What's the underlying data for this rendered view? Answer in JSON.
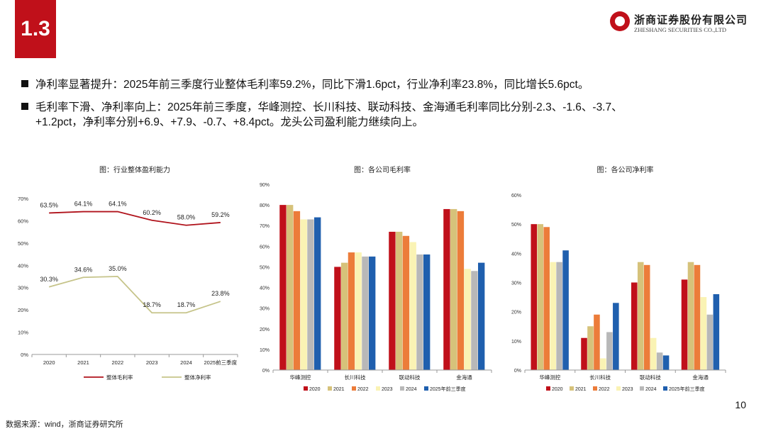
{
  "section_number": "1.3",
  "logo": {
    "name_cn": "浙商证券股份有限公司",
    "name_en": "ZHESHANG SECURITIES CO.,LTD"
  },
  "bullets": [
    "净利率显著提升：2025年前三季度行业整体毛利率59.2%，同比下滑1.6pct，行业净利率23.8%，同比增长5.6pct。",
    "毛利率下滑、净利率向上：2025年前三季度，华峰测控、长川科技、联动科技、金海通毛利率同比分别-2.3、-1.6、-3.7、",
    "+1.2pct，净利率分别+6.9、+7.9、-0.7、+8.4pct。龙头公司盈利能力继续向上。"
  ],
  "page_number": "10",
  "source": "数据来源：wind，浙商证券研究所",
  "chart_data": [
    {
      "type": "line",
      "title": "图：行业整体盈利能力",
      "categories": [
        "2020",
        "2021",
        "2022",
        "2023",
        "2024",
        "2025前三季度"
      ],
      "ylim": [
        0,
        70
      ],
      "yticks": [
        "0%",
        "10%",
        "20%",
        "30%",
        "40%",
        "50%",
        "60%",
        "70%"
      ],
      "series": [
        {
          "name": "整体毛利率",
          "color": "#b0121b",
          "values": [
            63.5,
            64.1,
            64.1,
            60.2,
            58.0,
            59.2
          ],
          "labels": [
            "63.5%",
            "64.1%",
            "64.1%",
            "60.2%",
            "58.0%",
            "59.2%"
          ]
        },
        {
          "name": "整体净利率",
          "color": "#c6c48a",
          "values": [
            30.3,
            34.6,
            35.0,
            18.7,
            18.7,
            23.8
          ],
          "labels": [
            "30.3%",
            "34.6%",
            "35.0%",
            "18.7%",
            "18.7%",
            "23.8%"
          ]
        }
      ]
    },
    {
      "type": "bar",
      "title": "图：各公司毛利率",
      "categories": [
        "华峰测控",
        "长川科技",
        "联动科技",
        "金海通"
      ],
      "ylim": [
        0,
        90
      ],
      "yticks": [
        "0%",
        "10%",
        "20%",
        "30%",
        "40%",
        "50%",
        "60%",
        "70%",
        "80%",
        "90%"
      ],
      "series": [
        {
          "name": "2020",
          "color": "#c0101a",
          "values": [
            80,
            50,
            67,
            78
          ]
        },
        {
          "name": "2021",
          "color": "#d6c27a",
          "values": [
            80,
            52,
            67,
            78
          ]
        },
        {
          "name": "2022",
          "color": "#ec7c3a",
          "values": [
            77,
            57,
            65,
            77
          ]
        },
        {
          "name": "2023",
          "color": "#faf3b4",
          "values": [
            73,
            57,
            62,
            49
          ]
        },
        {
          "name": "2024",
          "color": "#b8b8b8",
          "values": [
            73,
            55,
            56,
            48
          ]
        },
        {
          "name": "2025年前三季度",
          "color": "#1f5fae",
          "values": [
            74,
            55,
            56,
            52
          ]
        }
      ]
    },
    {
      "type": "bar",
      "title": "图：各公司净利率",
      "categories": [
        "华峰测控",
        "长川科技",
        "联动科技",
        "金海通"
      ],
      "ylim": [
        0,
        60
      ],
      "yticks": [
        "0%",
        "10%",
        "20%",
        "30%",
        "40%",
        "50%",
        "60%"
      ],
      "series": [
        {
          "name": "2020",
          "color": "#c0101a",
          "values": [
            50,
            11,
            30,
            31
          ]
        },
        {
          "name": "2021",
          "color": "#d6c27a",
          "values": [
            50,
            15,
            37,
            37
          ]
        },
        {
          "name": "2022",
          "color": "#ec7c3a",
          "values": [
            49,
            19,
            36,
            36
          ]
        },
        {
          "name": "2023",
          "color": "#faf3b4",
          "values": [
            37,
            4,
            11,
            25
          ]
        },
        {
          "name": "2024",
          "color": "#b8b8b8",
          "values": [
            37,
            13,
            6,
            19
          ]
        },
        {
          "name": "2025年前三季度",
          "color": "#1f5fae",
          "values": [
            41,
            23,
            5,
            26
          ]
        }
      ]
    }
  ]
}
